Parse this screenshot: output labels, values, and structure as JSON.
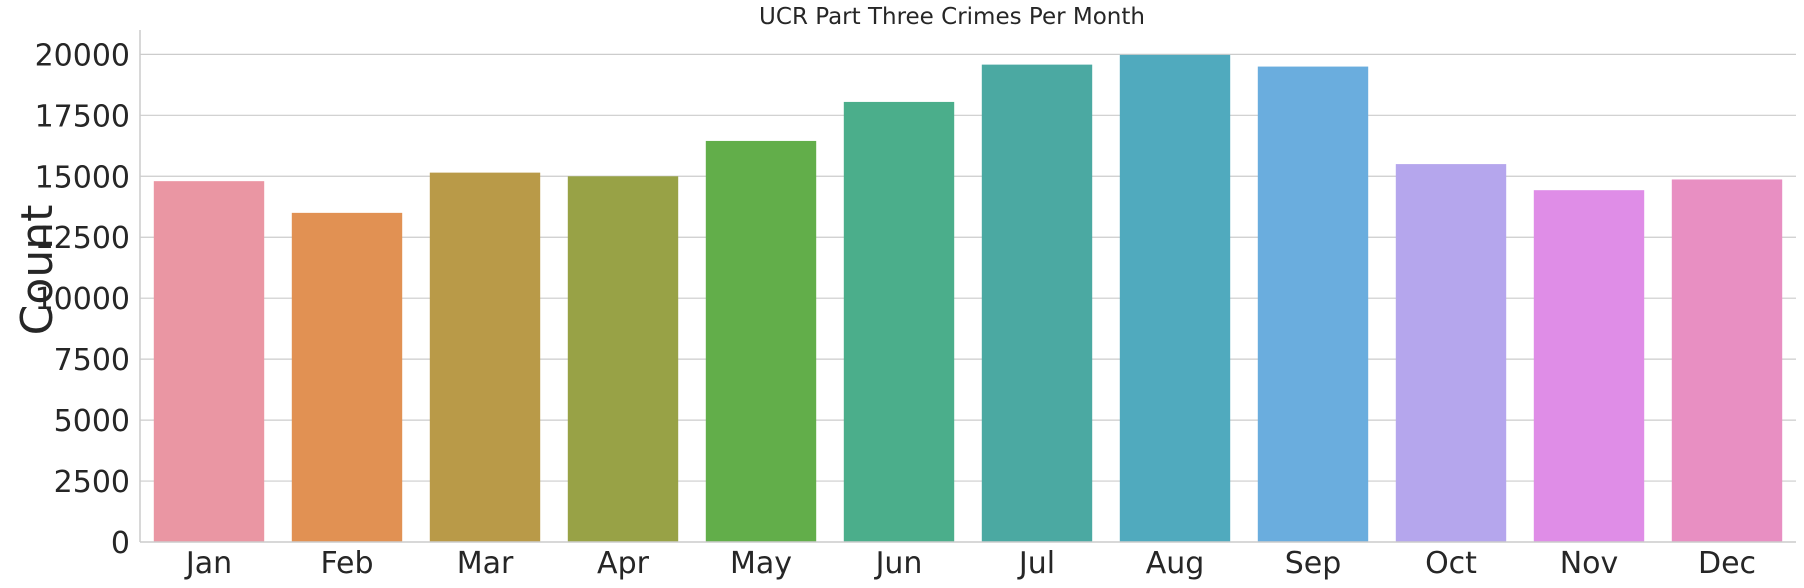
{
  "chart_data": {
    "type": "bar",
    "title": "UCR Part Three Crimes Per Month",
    "xlabel": "",
    "ylabel": "Count",
    "categories": [
      "Jan",
      "Feb",
      "Mar",
      "Apr",
      "May",
      "Jun",
      "Jul",
      "Aug",
      "Sep",
      "Oct",
      "Nov",
      "Dec"
    ],
    "values": [
      14800,
      13500,
      15150,
      15000,
      16450,
      18050,
      19580,
      19980,
      19500,
      15500,
      14430,
      14870
    ],
    "colors": [
      "#ea96a3",
      "#e19153",
      "#b99a48",
      "#98a246",
      "#62ae4a",
      "#4bae8b",
      "#4ba9a2",
      "#50aabe",
      "#6aadde",
      "#b5a6ed",
      "#df8de7",
      "#e88fc2"
    ],
    "ylim": [
      0,
      21000
    ],
    "yticks": [
      0,
      2500,
      5000,
      7500,
      10000,
      12500,
      15000,
      17500,
      20000
    ],
    "grid": "horizontal",
    "legend": "none"
  }
}
